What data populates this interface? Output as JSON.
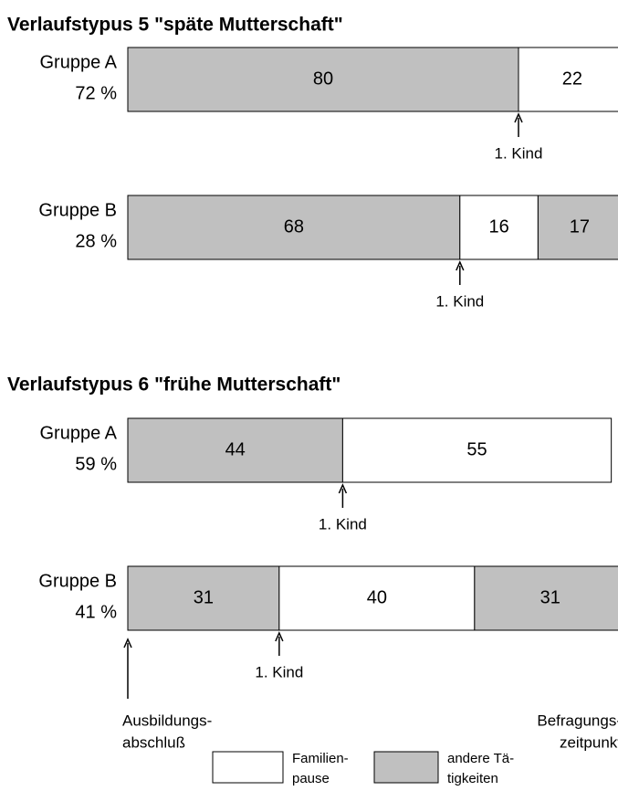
{
  "chart_data": [
    {
      "type": "stacked-bar",
      "title": "Verlaufstypus 5 \"späte Mutterschaft\"",
      "rows": [
        {
          "label": "Gruppe A",
          "share": "72 %",
          "values": [
            80,
            22
          ],
          "kinds": [
            1,
            0
          ],
          "annotation": "1. Kind"
        },
        {
          "label": "Gruppe B",
          "share": "28 %",
          "values": [
            68,
            16,
            17
          ],
          "kinds": [
            1,
            0,
            1
          ],
          "annotation": "1. Kind"
        }
      ]
    },
    {
      "type": "stacked-bar",
      "title": "Verlaufstypus 6 \"frühe Mutterschaft\"",
      "rows": [
        {
          "label": "Gruppe A",
          "share": "59 %",
          "values": [
            44,
            55
          ],
          "kinds": [
            1,
            0
          ],
          "annotation": "1. Kind"
        },
        {
          "label": "Gruppe B",
          "share": "41 %",
          "values": [
            31,
            40,
            31
          ],
          "kinds": [
            1,
            0,
            1
          ],
          "annotation": "1. Kind"
        }
      ],
      "start_label": [
        "Ausbildungs-",
        "abschluß"
      ],
      "end_label": [
        "Befragungs-",
        "zeitpunkt"
      ]
    }
  ],
  "legend": [
    {
      "label": [
        "Familien-",
        "pause"
      ],
      "color": "#ffffff"
    },
    {
      "label": [
        "andere Tä-",
        "tigkeiten"
      ],
      "color": "#c0c0c0"
    }
  ]
}
